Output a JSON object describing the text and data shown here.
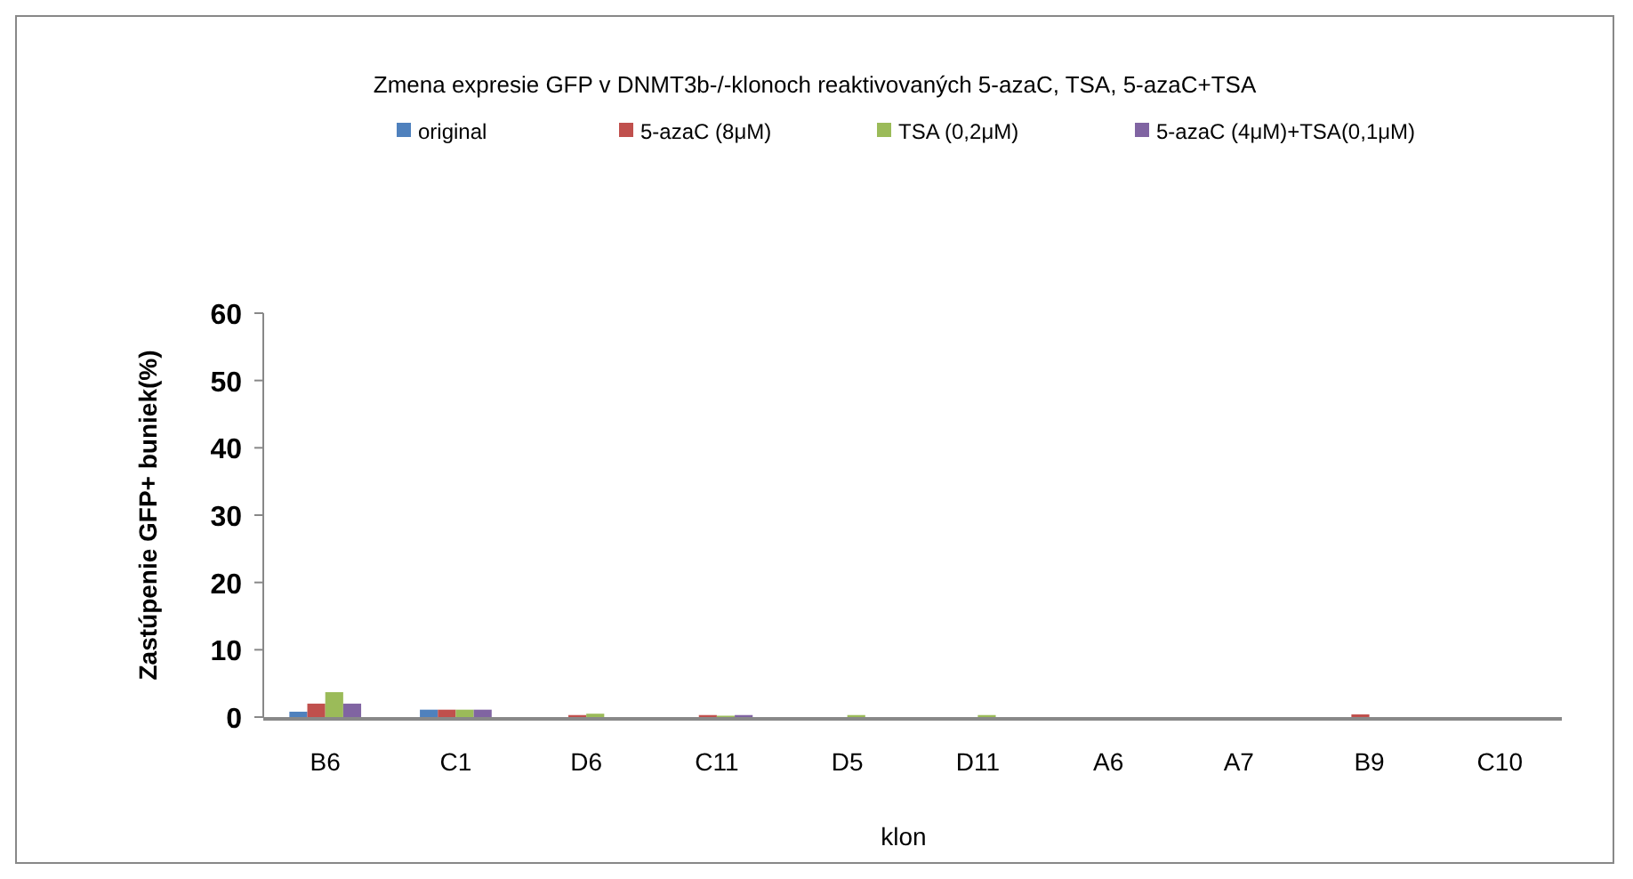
{
  "chart_data": {
    "type": "bar",
    "title": "Zmena expresie GFP v DNMT3b-/-klonoch reaktivovaných 5-azaC, TSA, 5-azaC+TSA",
    "xlabel": "klon",
    "ylabel": "Zastúpenie GFP+ buniek(%)",
    "categories": [
      "B6",
      "C1",
      "D6",
      "C11",
      "D5",
      "D11",
      "A6",
      "A7",
      "B9",
      "C10"
    ],
    "series": [
      {
        "name": "original",
        "color": "#4f81bd",
        "values": [
          0.8,
          1.1,
          null,
          null,
          null,
          null,
          null,
          null,
          null,
          null
        ]
      },
      {
        "name": "5-azaC (8μM)",
        "color": "#c0504d",
        "values": [
          2.0,
          1.1,
          0.3,
          0.3,
          null,
          null,
          null,
          null,
          0.4,
          null
        ]
      },
      {
        "name": "TSA (0,2μM)",
        "color": "#9bbb59",
        "values": [
          3.7,
          1.1,
          0.5,
          0.2,
          0.3,
          0.3,
          null,
          null,
          null,
          null
        ]
      },
      {
        "name": "5-azaC (4μM)+TSA(0,1μM)",
        "color": "#8064a2",
        "values": [
          2.0,
          1.1,
          null,
          0.3,
          null,
          null,
          null,
          null,
          null,
          null
        ]
      }
    ],
    "ylim": [
      0,
      60
    ],
    "yticks": [
      0,
      10,
      20,
      30,
      40,
      50,
      60
    ],
    "grid": false,
    "legend": "top"
  }
}
